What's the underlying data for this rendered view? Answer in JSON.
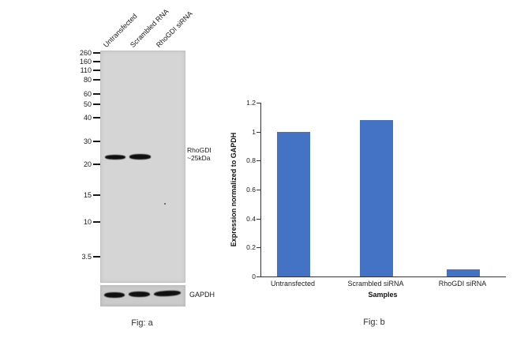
{
  "figure": {
    "caption_a": "Fig: a",
    "caption_b": "Fig: b"
  },
  "blot": {
    "lanes": [
      "Untransfected",
      "Scrambled RNA",
      "RhoGDI siRNA"
    ],
    "markers": [
      "260",
      "160",
      "110",
      "80",
      "60",
      "50",
      "40",
      "30",
      "20",
      "15",
      "10",
      "3.5"
    ],
    "band_label_line1": "RhoGDI",
    "band_label_line2": "~25kDa",
    "loading_control_label": "GAPDH"
  },
  "chart_data": {
    "type": "bar",
    "categories": [
      "Untransfected",
      "Scrambled siRNA",
      "RhoGDI siRNA"
    ],
    "values": [
      1.0,
      1.08,
      0.05
    ],
    "title": "",
    "xlabel": "Samples",
    "ylabel": "Expression normalized to GAPDH",
    "ylim": [
      0,
      1.2
    ],
    "yticks": [
      0,
      0.2,
      0.4,
      0.6,
      0.8,
      1.0,
      1.2
    ],
    "ytick_labels": [
      "0",
      "0.2",
      "0.4",
      "0.6",
      "0.8",
      "1",
      "1.2"
    ],
    "bar_color": "#4472c4",
    "grid": false,
    "legend": null
  }
}
